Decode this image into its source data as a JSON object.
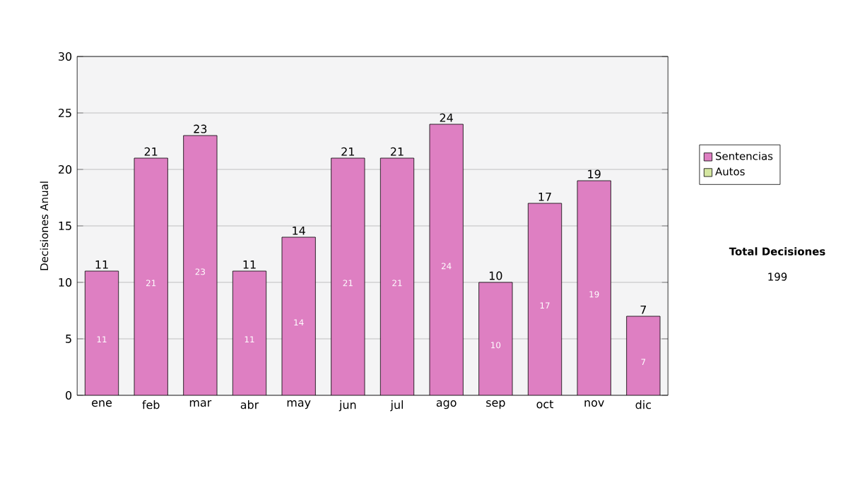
{
  "chart_data": {
    "type": "bar",
    "stacked": true,
    "ylabel": "Decisiones Anual",
    "categories": [
      "ene",
      "feb",
      "mar",
      "abr",
      "may",
      "jun",
      "jul",
      "ago",
      "sep",
      "oct",
      "nov",
      "dic"
    ],
    "series": [
      {
        "name": "Sentencias",
        "color": "#de7fc2",
        "values": [
          11,
          21,
          23,
          11,
          14,
          21,
          21,
          24,
          10,
          17,
          19,
          7
        ],
        "value_labels": [
          "11",
          "21",
          "23",
          "11",
          "14",
          "21",
          "21",
          "24",
          "10",
          "17",
          "19",
          "7"
        ]
      },
      {
        "name": "Autos",
        "color": "#d4e6a0",
        "values": [
          0,
          0,
          0,
          0,
          0,
          0,
          0,
          0,
          0,
          0,
          0,
          0
        ]
      }
    ],
    "totals": [
      "11",
      "21",
      "23",
      "11",
      "14",
      "21",
      "21",
      "24",
      "10",
      "17",
      "19",
      "7"
    ],
    "ylim": [
      0,
      30
    ],
    "yticks": [
      0,
      5,
      10,
      15,
      20,
      25,
      30
    ],
    "grid": "y",
    "legend": "right",
    "annotations": [
      "Total Decisiones",
      "199"
    ]
  }
}
